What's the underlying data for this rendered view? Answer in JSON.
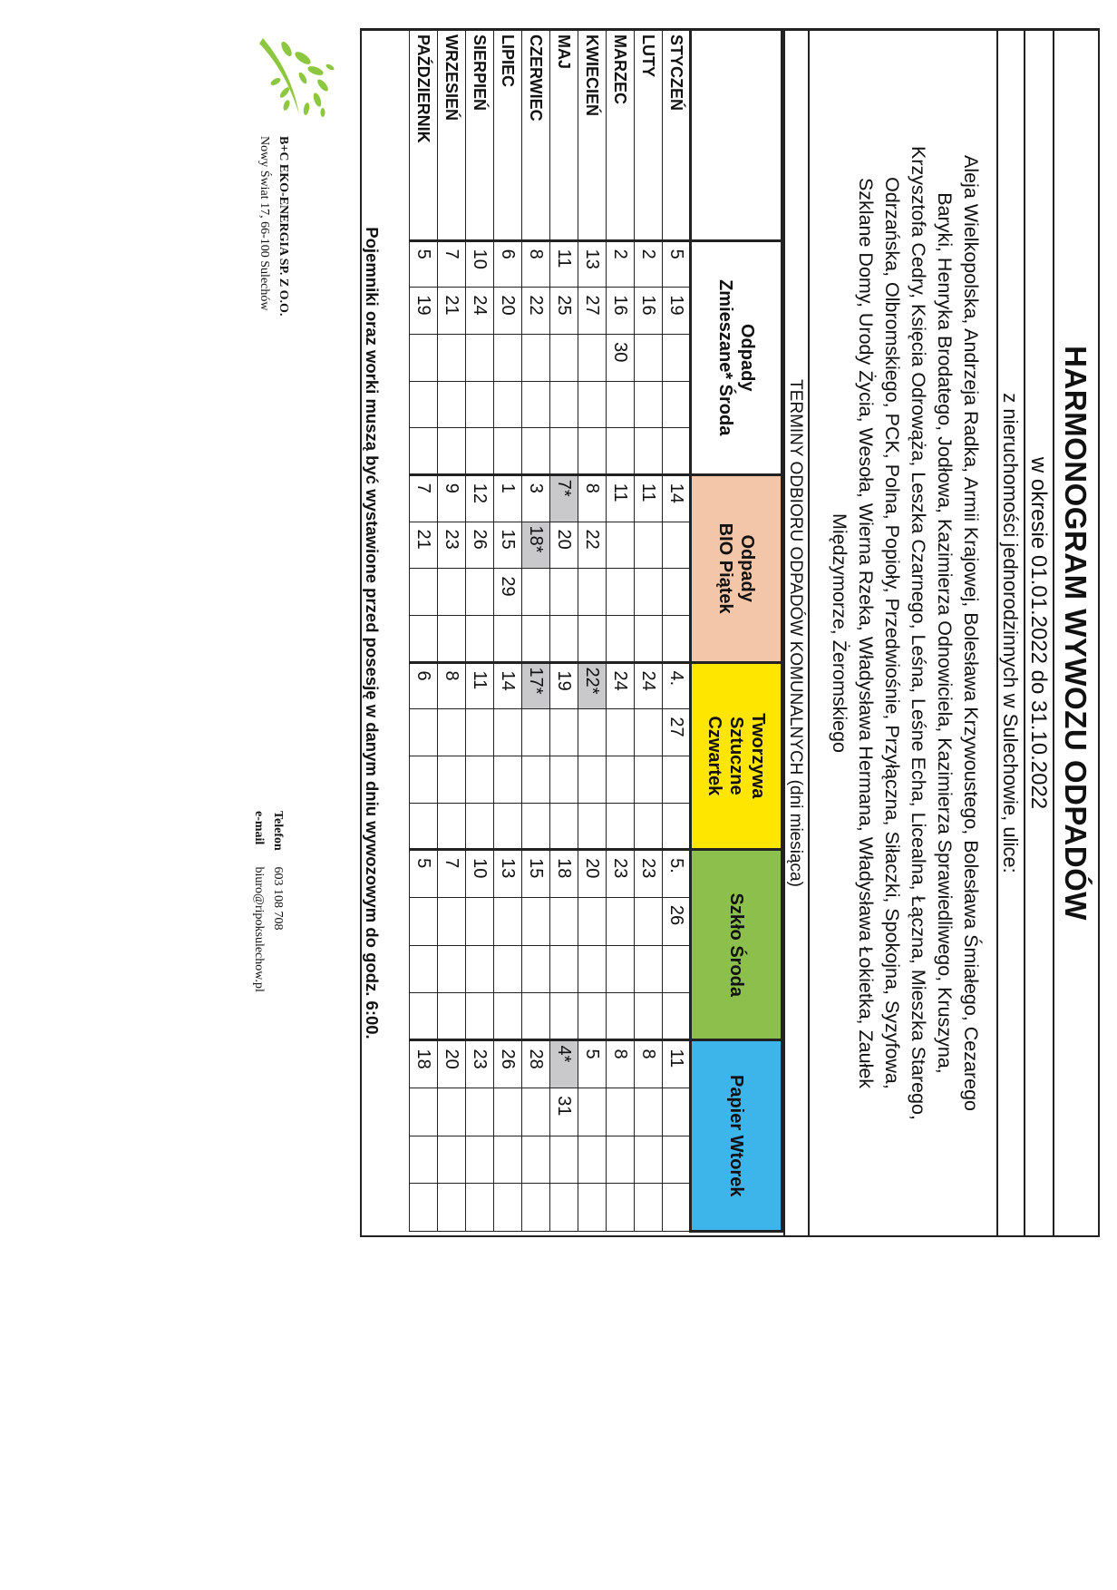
{
  "header": {
    "title": "HARMONOGRAM WYWOZU ODPADÓW",
    "period": "w okresie 01.01.2022 do 31.10.2022",
    "properties": "z nieruchomości jednorodzinnych w Sulechowie, ulice:",
    "streets": [
      "Aleja Wielkopolska, Andrzeja Radka, Armii Krajowej, Bolesława Krzywoustego, Bolesława Śmiałego, Cezarego",
      "Baryki, Henryka Brodatego, Jodłowa, Kazimierza Odnowiciela, Kazimierza Sprawiedliwego, Kruszyna,",
      "Krzysztofa Cedry, Księcia Odrowąża, Leszka Czarnego, Leśna, Leśne Echa, Licealna, Łączna, Mieszka Starego,",
      "Odrzańska, Olbromskiego, PCK, Polna, Popioły, Przedwiośnie, Przyłączna, Siłaczki, Spokojna, Syzyfowa,",
      "Szklane Domy, Urody Życia, Wesoła, Wierna Rzeka, Władysława Hermana,  Władysława Łokietka, Zaułek",
      "Międzymorze, Żeromskiego"
    ],
    "terms_title": "TERMINY ODBIORU ODPADÓW KOMUNALNYCH (dni miesiąca)"
  },
  "table": {
    "groups": [
      {
        "key": "z",
        "label": "Odpady\nZmieszane* Środa",
        "color": "#ffffff",
        "slots": 5
      },
      {
        "key": "bio",
        "label": "Odpady\nBIO Piątek",
        "color": "#f3c6a9",
        "slots": 4
      },
      {
        "key": "t",
        "label": "Tworzywa\nSztuczne\nCzwartek",
        "color": "#ffe600",
        "slots": 4
      },
      {
        "key": "s",
        "label": "Szkło Środa",
        "color": "#8cbf4b",
        "slots": 4
      },
      {
        "key": "p",
        "label": "Papier Wtorek",
        "color": "#3db4ea",
        "slots": 4
      }
    ],
    "highlight_color": "#c9c9cb",
    "rows": [
      {
        "month": "STYCZEŃ",
        "z": [
          "5",
          "19"
        ],
        "bio": [
          "14"
        ],
        "t": [
          "4.",
          "27"
        ],
        "s": [
          "5.",
          "26"
        ],
        "p": [
          "11"
        ]
      },
      {
        "month": "LUTY",
        "z": [
          "2",
          "16"
        ],
        "bio": [
          "11"
        ],
        "t": [
          "24"
        ],
        "s": [
          "23"
        ],
        "p": [
          "8"
        ]
      },
      {
        "month": "MARZEC",
        "z": [
          "2",
          "16",
          "30"
        ],
        "bio": [
          "11"
        ],
        "t": [
          "24"
        ],
        "s": [
          "23"
        ],
        "p": [
          "8"
        ]
      },
      {
        "month": "KWIECIEŃ",
        "z": [
          "13",
          "27"
        ],
        "bio": [
          "8",
          "22"
        ],
        "t": [
          "22*"
        ],
        "s": [
          "20"
        ],
        "p": [
          "5"
        ]
      },
      {
        "month": "MAJ",
        "z": [
          "11",
          "25"
        ],
        "bio": [
          "7*",
          "20"
        ],
        "t": [
          "19"
        ],
        "s": [
          "18"
        ],
        "p": [
          "4*",
          "31"
        ]
      },
      {
        "month": "CZERWIEC",
        "z": [
          "8",
          "22"
        ],
        "bio": [
          "3",
          "18*"
        ],
        "t": [
          "17*"
        ],
        "s": [
          "15"
        ],
        "p": [
          "28"
        ]
      },
      {
        "month": "LIPIEC",
        "z": [
          "6",
          "20"
        ],
        "bio": [
          "1",
          "15",
          "29"
        ],
        "t": [
          "14"
        ],
        "s": [
          "13"
        ],
        "p": [
          "26"
        ]
      },
      {
        "month": "SIERPIEŃ",
        "z": [
          "10",
          "24"
        ],
        "bio": [
          "12",
          "26"
        ],
        "t": [
          "11"
        ],
        "s": [
          "10"
        ],
        "p": [
          "23"
        ]
      },
      {
        "month": "WRZESIEŃ",
        "z": [
          "7",
          "21"
        ],
        "bio": [
          "9",
          "23"
        ],
        "t": [
          "8"
        ],
        "s": [
          "7"
        ],
        "p": [
          "20"
        ]
      },
      {
        "month": "PAŹDZIERNIK",
        "z": [
          "5",
          "19"
        ],
        "bio": [
          "7",
          "21"
        ],
        "t": [
          "6"
        ],
        "s": [
          "5"
        ],
        "p": [
          "18"
        ]
      }
    ]
  },
  "note": "Pojemniki oraz worki muszą być wystawione przed posesję w danym dniu wywozowym do godz. 6:00.",
  "footer": {
    "logo_icon": "tree-leaves-logo",
    "logo_color": "#8dc63f",
    "company": "B+C EKO-ENERGIA SP. Z O.O.",
    "address": "Nowy Świat 17, 66-100 Sulechów",
    "phone_label": "Telefon",
    "phone": "603 108 708",
    "email_label": "e-mail",
    "email": "biuro@ripoksulechow.pl"
  }
}
